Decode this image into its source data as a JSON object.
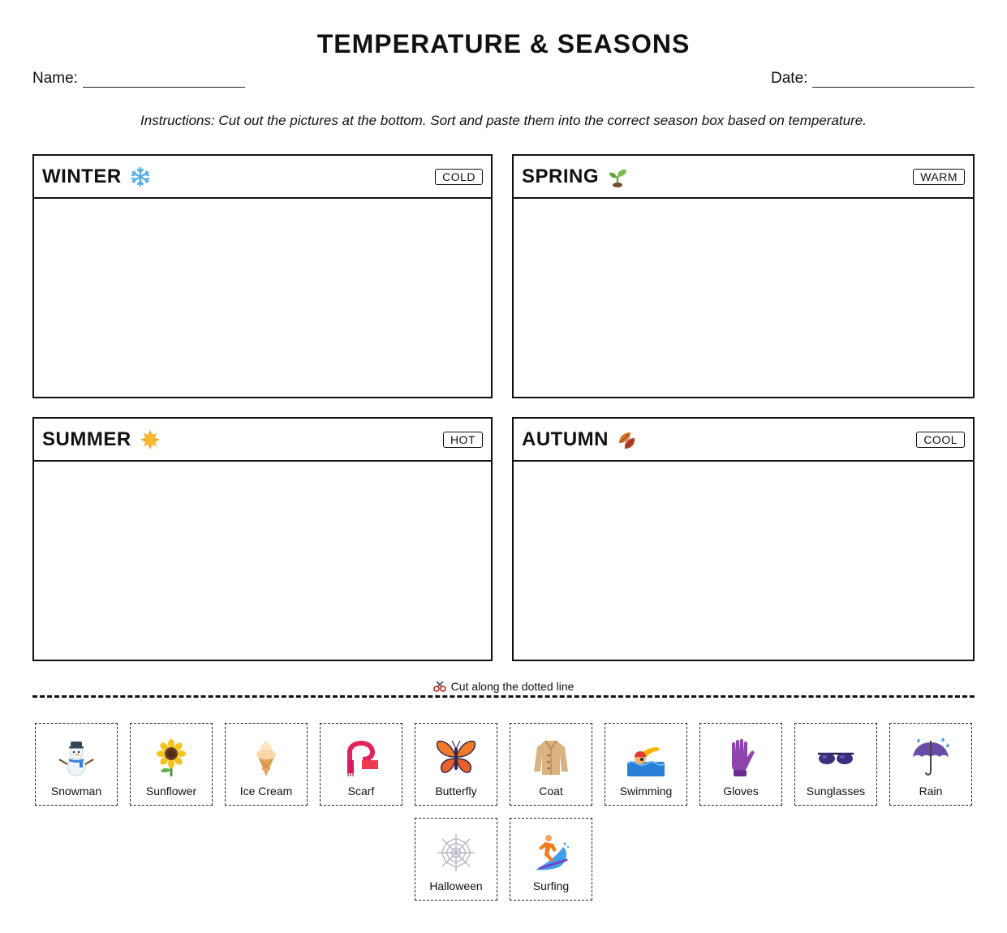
{
  "title": "TEMPERATURE & SEASONS",
  "name_label": "Name:",
  "date_label": "Date:",
  "instructions": "Instructions: Cut out the pictures at the bottom. Sort and paste them into the correct season box based on temperature.",
  "seasons": [
    {
      "name": "WINTER",
      "temp": "COLD",
      "icon": "snowflake-icon"
    },
    {
      "name": "SPRING",
      "temp": "WARM",
      "icon": "seedling-icon"
    },
    {
      "name": "SUMMER",
      "temp": "HOT",
      "icon": "sun-icon"
    },
    {
      "name": "AUTUMN",
      "temp": "COOL",
      "icon": "fallen-leaves-icon"
    }
  ],
  "cut_label": "Cut along the dotted line",
  "cards": [
    {
      "label": "Snowman",
      "icon": "snowman-icon"
    },
    {
      "label": "Sunflower",
      "icon": "sunflower-icon"
    },
    {
      "label": "Ice Cream",
      "icon": "ice-cream-icon"
    },
    {
      "label": "Scarf",
      "icon": "scarf-icon"
    },
    {
      "label": "Butterfly",
      "icon": "butterfly-icon"
    },
    {
      "label": "Coat",
      "icon": "coat-icon"
    },
    {
      "label": "Swimming",
      "icon": "swimming-icon"
    },
    {
      "label": "Gloves",
      "icon": "gloves-icon"
    },
    {
      "label": "Sunglasses",
      "icon": "sunglasses-icon"
    },
    {
      "label": "Rain",
      "icon": "umbrella-rain-icon"
    },
    {
      "label": "Halloween",
      "icon": "spider-web-icon"
    },
    {
      "label": "Surfing",
      "icon": "surfing-icon"
    }
  ]
}
